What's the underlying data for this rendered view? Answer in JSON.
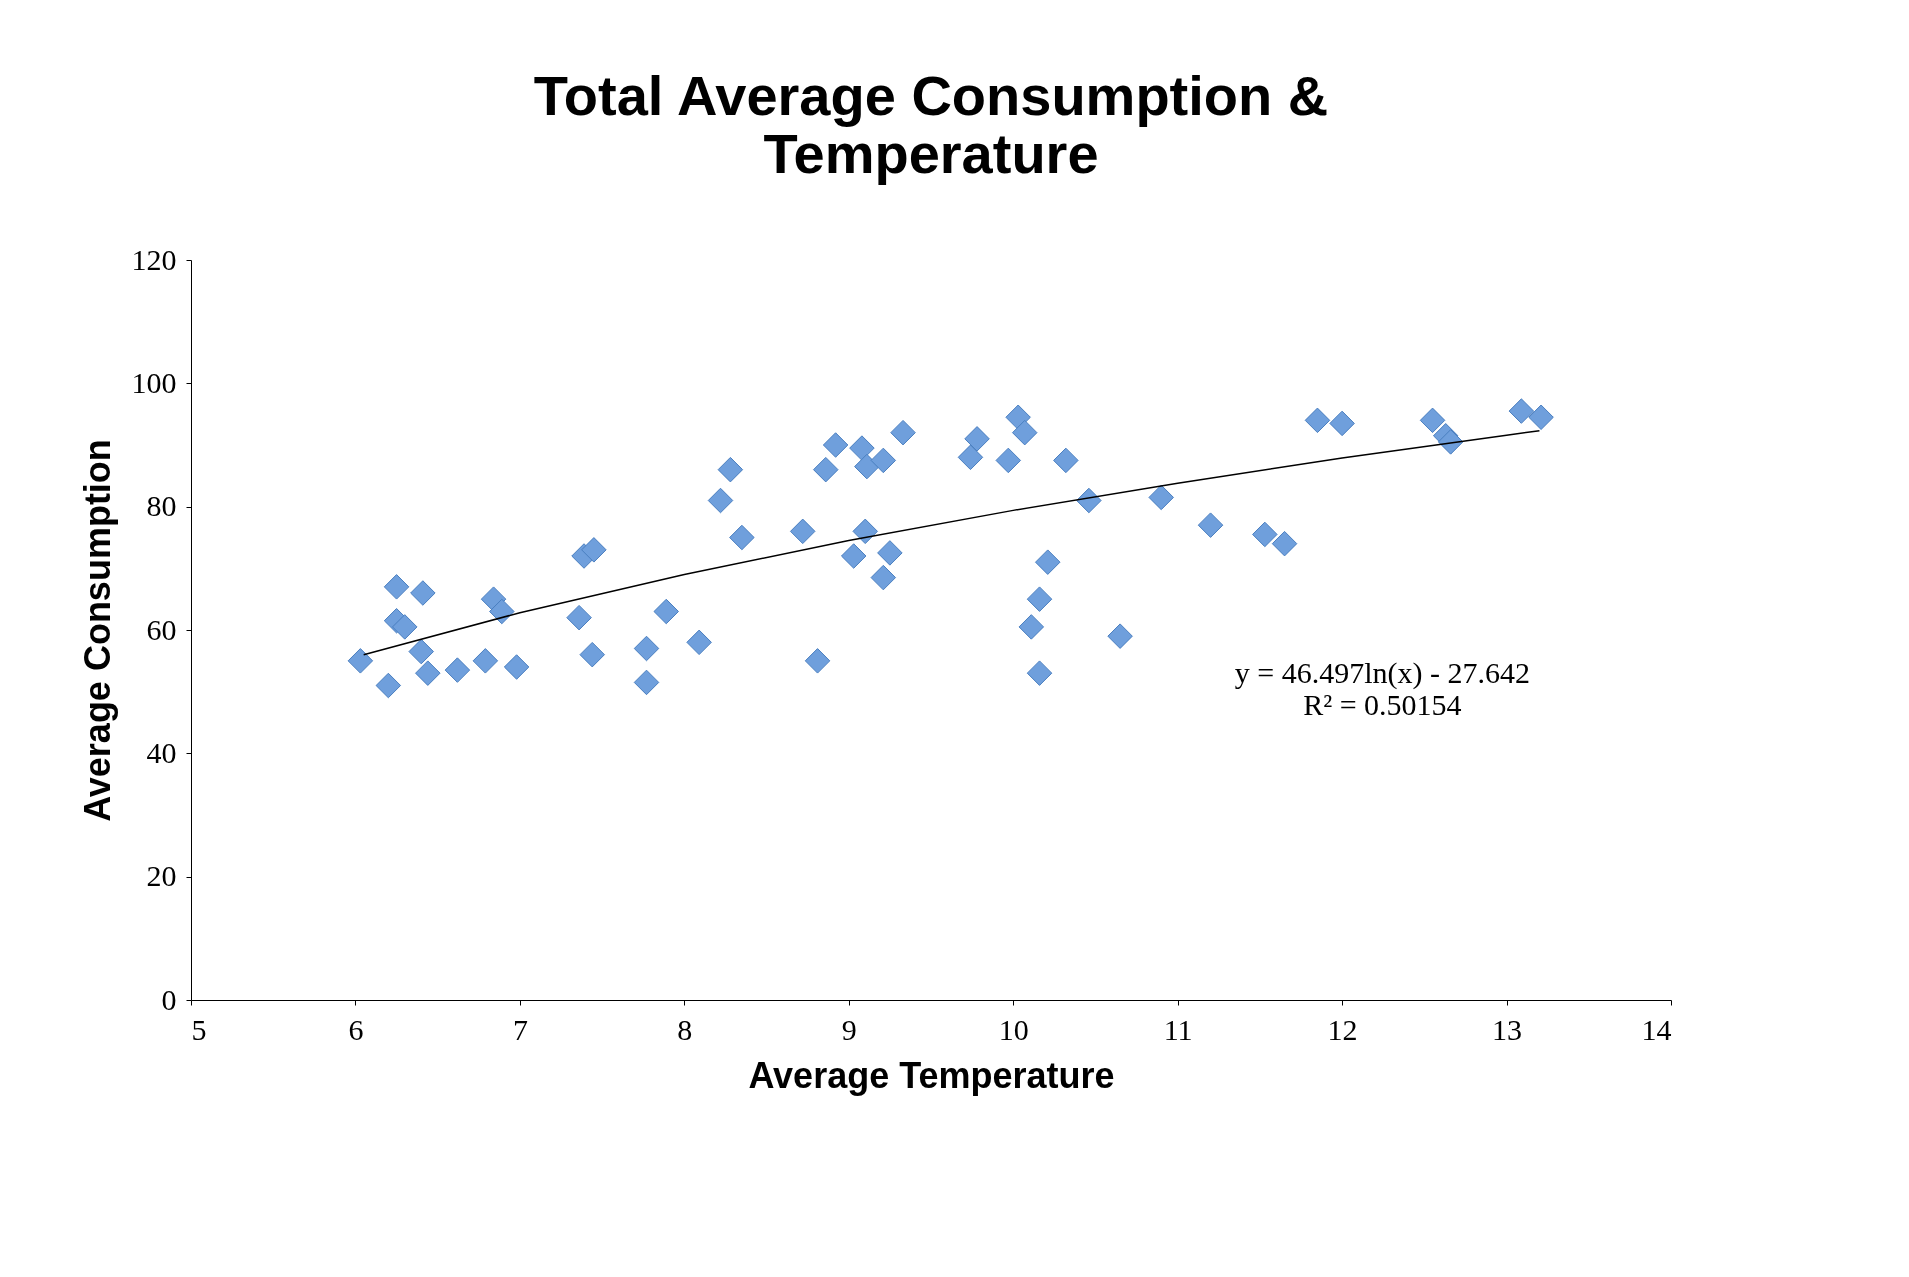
{
  "chart_data": {
    "type": "scatter",
    "title": "Total Average Consumption & Temperature",
    "xlabel": "Average Temperature",
    "ylabel": "Average Consumption",
    "xlim": [
      5,
      14
    ],
    "xticks": [
      5,
      6,
      7,
      8,
      9,
      10,
      11,
      12,
      13,
      14
    ],
    "ylim": [
      0,
      120
    ],
    "yticks": [
      0,
      20,
      40,
      60,
      80,
      100,
      120
    ],
    "grid": false,
    "series": [
      {
        "marker": "diamond",
        "color": "#6f9fdc",
        "x": [
          6.03,
          6.2,
          6.25,
          6.25,
          6.3,
          6.41,
          6.4,
          6.44,
          6.62,
          6.79,
          6.84,
          6.89,
          6.98,
          7.36,
          7.39,
          7.45,
          7.44,
          7.77,
          7.77,
          7.89,
          8.09,
          8.22,
          8.28,
          8.35,
          8.72,
          8.81,
          8.86,
          8.92,
          9.03,
          9.1,
          9.08,
          9.11,
          9.21,
          9.21,
          9.25,
          9.33,
          9.74,
          9.78,
          9.97,
          10.03,
          10.07,
          10.11,
          10.16,
          10.21,
          10.16,
          10.32,
          10.46,
          10.65,
          10.9,
          11.2,
          11.53,
          11.65,
          11.85,
          12.0,
          12.55,
          12.63,
          12.66,
          13.09,
          13.21
        ],
        "values": [
          55,
          51,
          67,
          61.5,
          60.5,
          66,
          56.5,
          53,
          53.5,
          55,
          65,
          63,
          54,
          62,
          72,
          73,
          56,
          57,
          51.5,
          63,
          58,
          81,
          86,
          75,
          76,
          55,
          86,
          90,
          72,
          76,
          89.5,
          86.5,
          87.5,
          68.5,
          72.5,
          92,
          88,
          91,
          87.5,
          94.5,
          92,
          60.5,
          65,
          71,
          53,
          87.5,
          81,
          59,
          81.5,
          77,
          75.5,
          74,
          94,
          93.5,
          94,
          91.5,
          90.5,
          95.5,
          94.5
        ]
      },
      {
        "type": "line",
        "color": "#000000",
        "line_style": "solid",
        "x": [
          6.05,
          7,
          8,
          9,
          10,
          11,
          12,
          13,
          13.2
        ],
        "values": [
          56,
          62.8,
          69,
          74.5,
          79.4,
          83.8,
          87.9,
          91.6,
          92.3
        ]
      }
    ],
    "annotations": [
      "y = 46.497ln(x) - 27.642\nR² = 0.50154"
    ]
  }
}
